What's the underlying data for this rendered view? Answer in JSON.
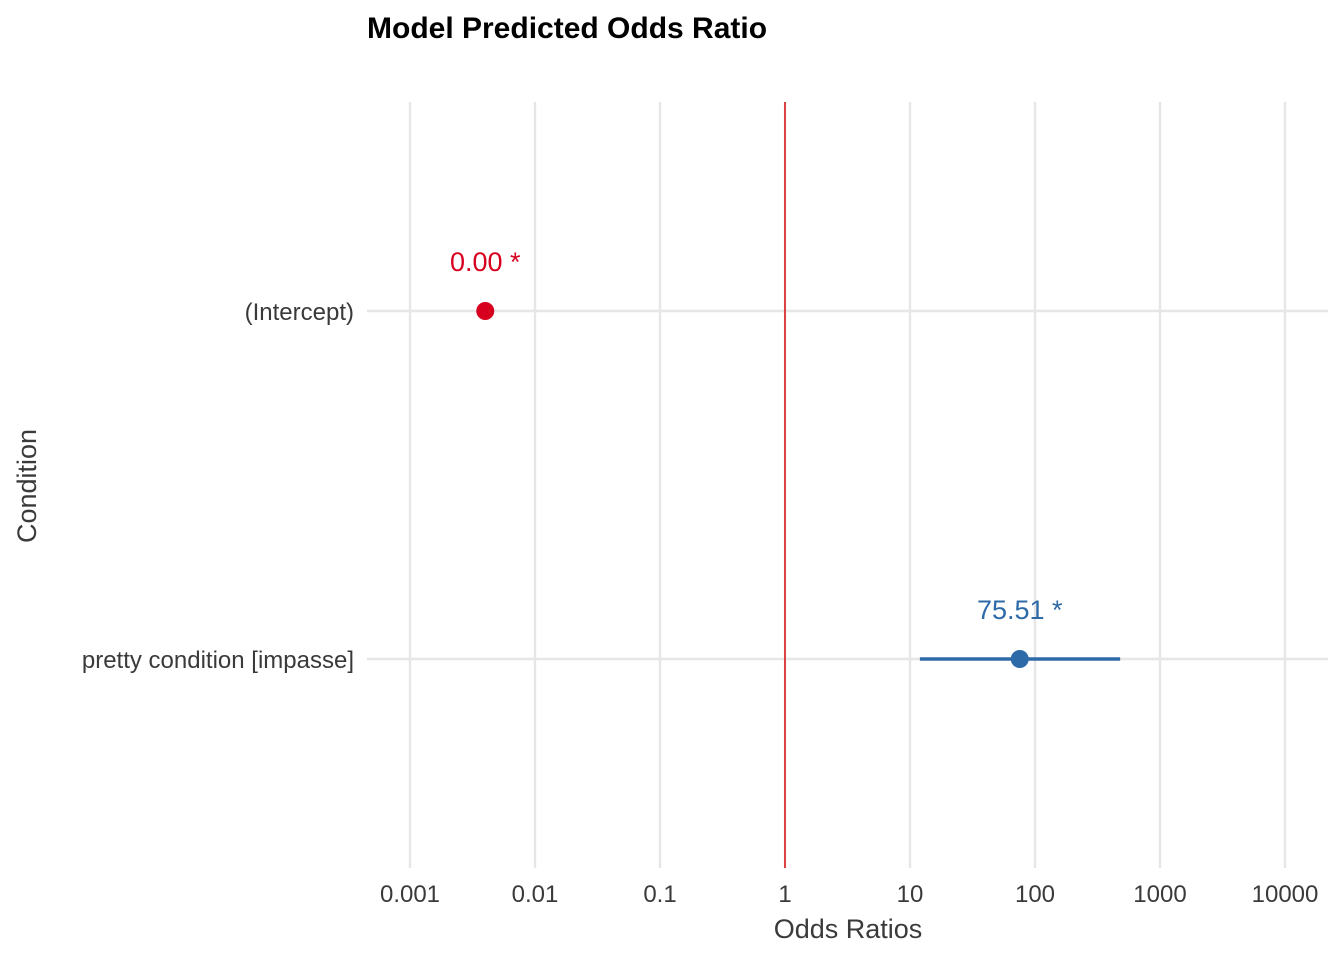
{
  "chart_data": {
    "type": "scatter",
    "title": "Model Predicted Odds Ratio",
    "xlabel": "Odds Ratios",
    "ylabel": "Condition",
    "x_scale": "log10",
    "xlim": [
      0.001,
      10000
    ],
    "x_ticks": [
      {
        "value": 0.001,
        "label": "0.001"
      },
      {
        "value": 0.01,
        "label": "0.01"
      },
      {
        "value": 0.1,
        "label": "0.1"
      },
      {
        "value": 1,
        "label": "1"
      },
      {
        "value": 10,
        "label": "10"
      },
      {
        "value": 100,
        "label": "100"
      },
      {
        "value": 1000,
        "label": "1000"
      },
      {
        "value": 10000,
        "label": "10000"
      }
    ],
    "reference_line": {
      "x": 1,
      "color": "#d7191c"
    },
    "grid": true,
    "categories": [
      "(Intercept)",
      "pretty condition [impasse]"
    ],
    "points": [
      {
        "term": "(Intercept)",
        "estimate": 0.004,
        "ci_low": 0.004,
        "ci_high": 0.004,
        "label": "0.00 *",
        "color": "#d7001f"
      },
      {
        "term": "pretty condition [impasse]",
        "estimate": 75.51,
        "ci_low": 12,
        "ci_high": 480,
        "label": "75.51 *",
        "color": "#2f6aa8"
      }
    ]
  }
}
